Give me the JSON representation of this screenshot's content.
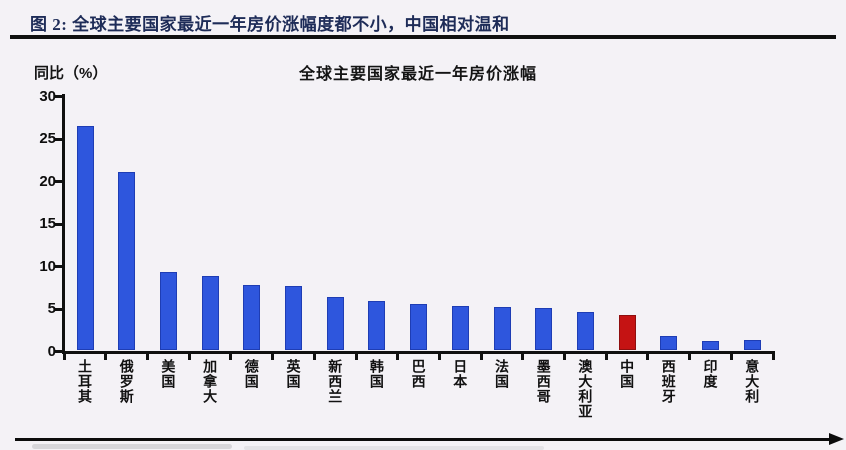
{
  "header": {
    "figure_title": "图 2: 全球主要国家最近一年房价涨幅度都不小，中国相对温和"
  },
  "chart_data": {
    "type": "bar",
    "title": "全球主要国家最近一年房价涨幅",
    "ylabel": "同比（%）",
    "xlabel": "",
    "ylim": [
      0,
      30
    ],
    "yticks": [
      0,
      5,
      10,
      15,
      20,
      25,
      30
    ],
    "grid": false,
    "legend": "none",
    "categories": [
      "土耳其",
      "俄罗斯",
      "美国",
      "加拿大",
      "德国",
      "英国",
      "新西兰",
      "韩国",
      "巴西",
      "日本",
      "法国",
      "墨西哥",
      "澳大利亚",
      "中国",
      "西班牙",
      "印度",
      "意大利"
    ],
    "values": [
      26.4,
      21.0,
      9.2,
      8.7,
      7.7,
      7.5,
      6.2,
      5.8,
      5.4,
      5.2,
      5.1,
      5.0,
      4.5,
      4.1,
      1.7,
      1.1,
      1.2
    ],
    "highlight": {
      "category": "中国",
      "index": 13
    }
  },
  "colors": {
    "page_bg": "#f4f2f6",
    "header_text": "#1e2c58",
    "axis": "#101010",
    "bar_blue": "#2e56dd",
    "bar_red": "#c51313"
  }
}
